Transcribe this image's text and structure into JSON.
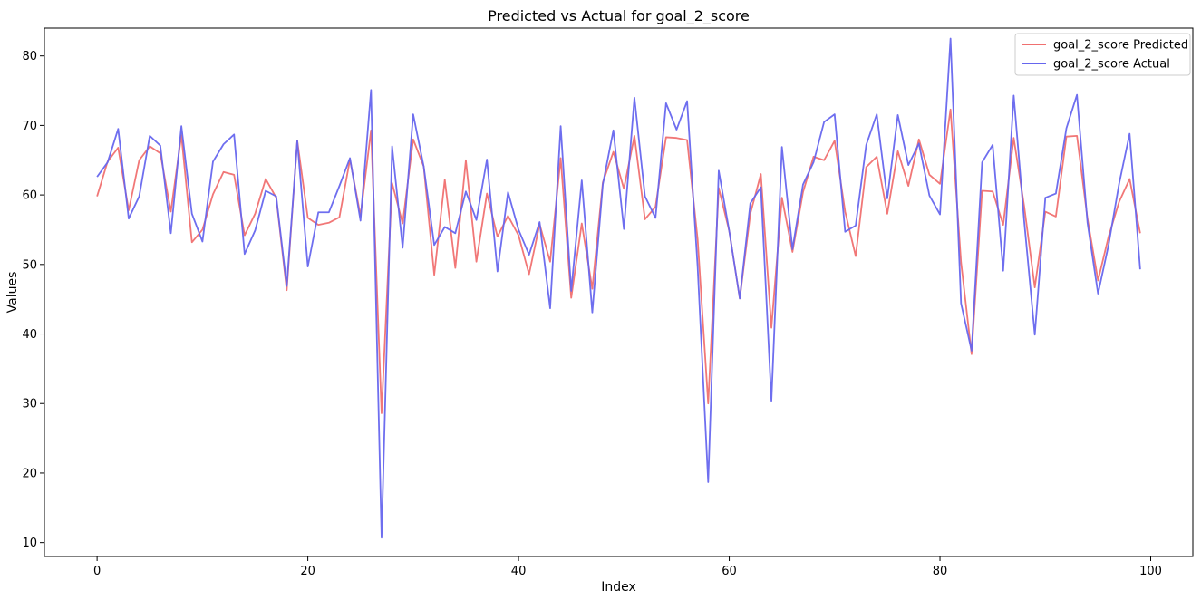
{
  "chart_data": {
    "type": "line",
    "title": "Predicted vs Actual for goal_2_score",
    "xlabel": "Index",
    "ylabel": "Values",
    "xlim": [
      -5,
      104
    ],
    "ylim": [
      8,
      84
    ],
    "xticks": [
      0,
      20,
      40,
      60,
      80,
      100
    ],
    "yticks": [
      10,
      20,
      30,
      40,
      50,
      60,
      70,
      80
    ],
    "grid": false,
    "legend_position": "top-right",
    "series": [
      {
        "name": "goal_2_score Predicted",
        "color": "#f07070",
        "values": [
          59.8,
          64.8,
          66.8,
          57.8,
          65.0,
          67.0,
          66.0,
          57.6,
          68.6,
          53.2,
          55.0,
          60.1,
          63.3,
          62.9,
          54.2,
          57.3,
          62.3,
          59.6,
          46.3,
          67.8,
          56.7,
          55.7,
          56.0,
          56.8,
          65.1,
          57.0,
          69.3,
          28.6,
          61.7,
          55.9,
          68.0,
          64.1,
          48.5,
          62.2,
          49.5,
          65.0,
          50.4,
          60.2,
          54.0,
          57.0,
          54.2,
          48.6,
          55.8,
          50.4,
          65.3,
          45.2,
          55.9,
          46.5,
          61.8,
          66.2,
          60.9,
          68.5,
          56.5,
          58.3,
          68.3,
          68.2,
          67.9,
          53.6,
          30.0,
          61.0,
          54.8,
          45.1,
          57.3,
          63.0,
          40.9,
          59.6,
          51.8,
          60.4,
          65.5,
          65.0,
          67.8,
          57.6,
          51.2,
          64.0,
          65.5,
          57.3,
          66.3,
          61.3,
          68.0,
          62.9,
          61.6,
          72.3,
          50.3,
          37.1,
          60.6,
          60.5,
          55.7,
          68.2,
          58.3,
          46.7,
          57.6,
          56.9,
          68.4,
          68.5,
          56.6,
          47.7,
          54.0,
          59.0,
          62.3,
          54.5
        ]
      },
      {
        "name": "goal_2_score Actual",
        "color": "#6666ee",
        "values": [
          62.6,
          64.7,
          69.5,
          56.6,
          59.8,
          68.5,
          67.1,
          54.5,
          69.9,
          57.3,
          53.3,
          64.8,
          67.3,
          68.7,
          51.5,
          54.9,
          60.6,
          59.8,
          46.9,
          67.8,
          49.7,
          57.5,
          57.5,
          61.3,
          65.3,
          56.3,
          75.1,
          10.7,
          67.0,
          52.4,
          71.6,
          64.1,
          52.8,
          55.4,
          54.5,
          60.5,
          56.4,
          65.1,
          49.0,
          60.4,
          55.0,
          51.4,
          56.1,
          43.7,
          69.9,
          46.2,
          62.1,
          43.1,
          61.5,
          69.3,
          55.1,
          74.0,
          59.8,
          56.7,
          73.2,
          69.4,
          73.5,
          49.6,
          18.7,
          63.5,
          54.8,
          45.1,
          58.8,
          61.1,
          30.4,
          66.9,
          52.2,
          61.5,
          64.7,
          70.5,
          71.6,
          54.7,
          55.6,
          67.2,
          71.6,
          59.5,
          71.5,
          64.3,
          67.4,
          59.9,
          57.2,
          82.5,
          44.4,
          37.6,
          64.7,
          67.2,
          49.1,
          74.3,
          56.1,
          39.9,
          59.6,
          60.2,
          69.6,
          74.4,
          56.0,
          45.8,
          52.8,
          61.6,
          68.8,
          49.3
        ]
      }
    ]
  }
}
